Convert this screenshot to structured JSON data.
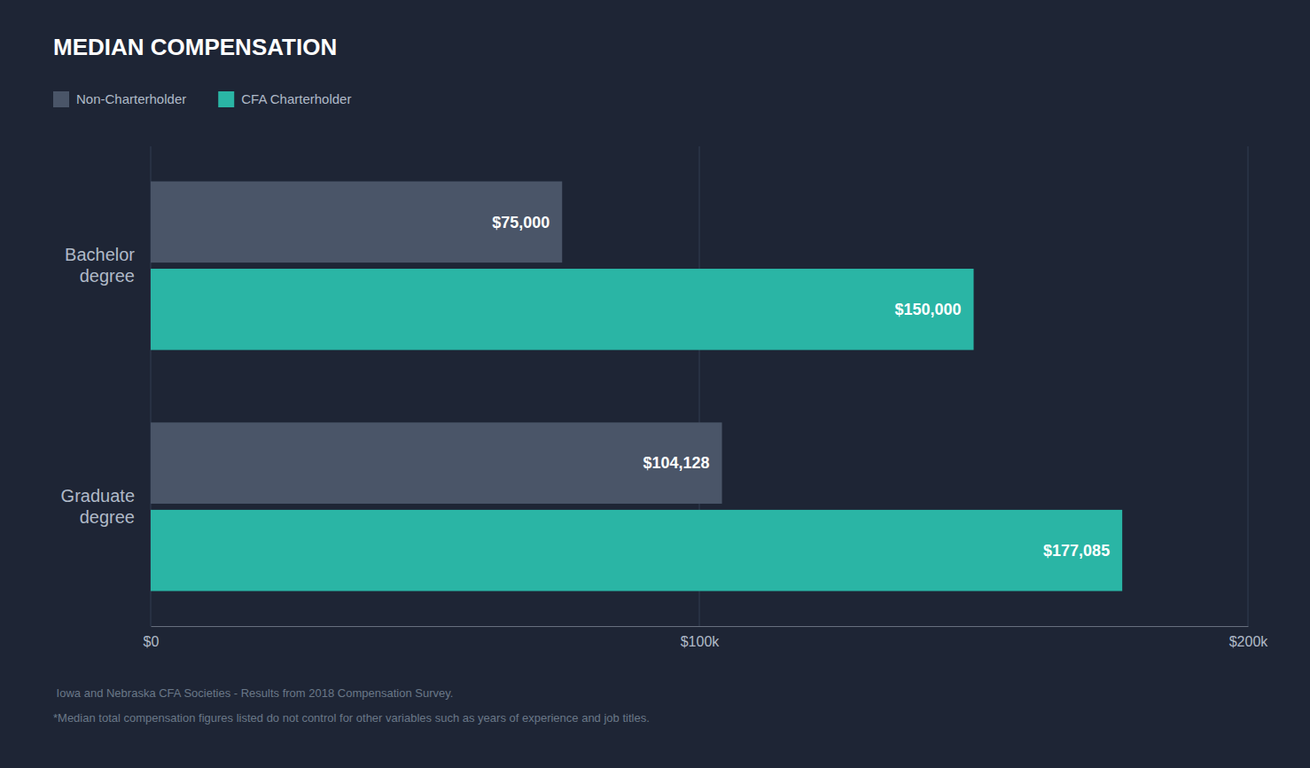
{
  "chart_data": {
    "type": "bar",
    "orientation": "horizontal",
    "title": "MEDIAN COMPENSATION",
    "categories": [
      "Bachelor\ndegree",
      "Graduate\ndegree"
    ],
    "series": [
      {
        "name": "Non-Charterholder",
        "color": "#4a5568",
        "values": [
          75000,
          104128
        ],
        "value_labels": [
          "$75,000",
          "$104,128"
        ]
      },
      {
        "name": "CFA Charterholder",
        "color": "#2ab5a5",
        "values": [
          150000,
          177085
        ],
        "value_labels": [
          "$150,000",
          "$177,085"
        ]
      }
    ],
    "xlim": [
      0,
      200000
    ],
    "xticks": [
      {
        "value": 0,
        "label": "$0"
      },
      {
        "value": 100000,
        "label": "$100k"
      },
      {
        "value": 200000,
        "label": "$200k"
      }
    ],
    "grid": true,
    "legend": "upper left",
    "data_labels": true,
    "annotations": [
      " Iowa and Nebraska CFA Societies - Results from 2018 Compensation Survey.",
      "*Median total compensation figures listed do not control for other variables such as years of experience and job titles."
    ]
  }
}
